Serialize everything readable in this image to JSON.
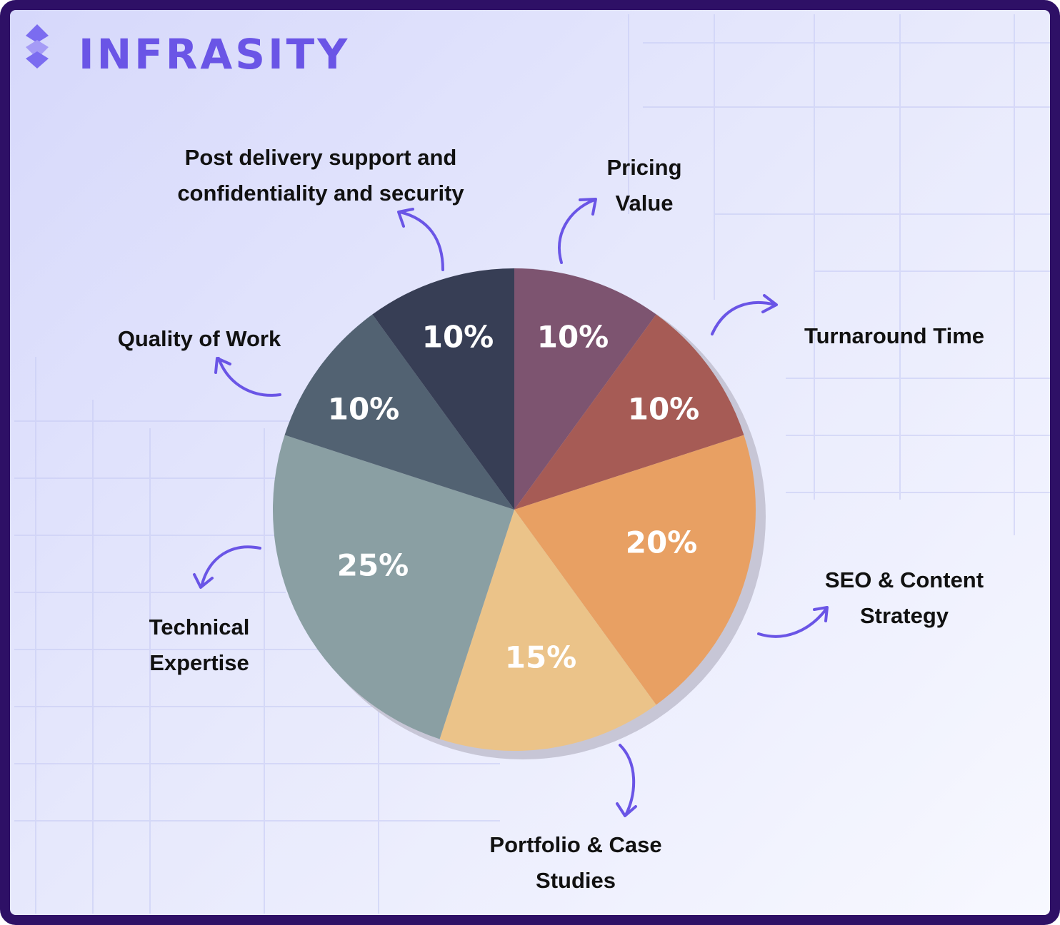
{
  "logo": "INFRASITY",
  "chart_data": {
    "type": "pie",
    "categories": [
      "Pricing Value",
      "Turnaround Time",
      "SEO & Content Strategy",
      "Portfolio & Case Studies",
      "Technical Expertise",
      "Quality of Work",
      "Post delivery support and confidentiality and security"
    ],
    "values": [
      10,
      10,
      20,
      15,
      25,
      10,
      10
    ],
    "value_labels": [
      "10%",
      "10%",
      "20%",
      "15%",
      "25%",
      "10%",
      "10%"
    ],
    "colors": [
      "#7d5470",
      "#a65b55",
      "#e8a063",
      "#ebc389",
      "#8a9fa3",
      "#526272",
      "#373e55"
    ]
  }
}
